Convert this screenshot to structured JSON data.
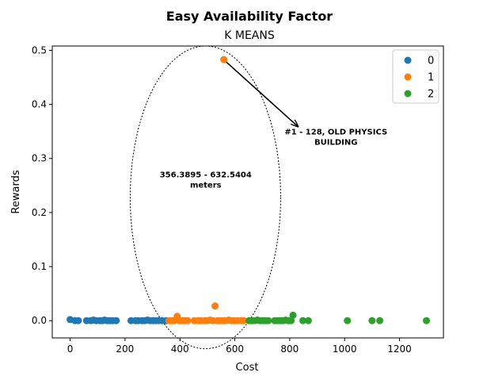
{
  "chart_data": {
    "type": "scatter",
    "title": "Easy Availability Factor",
    "subtitle": "K MEANS",
    "xlabel": "Cost",
    "ylabel": "Rewards",
    "xlim": [
      -65,
      1360
    ],
    "ylim": [
      -0.032,
      0.508
    ],
    "xticks": [
      0,
      200,
      400,
      600,
      800,
      1000,
      1200
    ],
    "yticks": [
      0.0,
      0.1,
      0.2,
      0.3,
      0.4,
      0.5
    ],
    "ytick_labels": [
      "0.0",
      "0.1",
      "0.2",
      "0.3",
      "0.4",
      "0.5"
    ],
    "grid": false,
    "legend_position": "top-right",
    "series": [
      {
        "name": "0",
        "color": "#1f77b4",
        "points": [
          [
            0,
            0.002
          ],
          [
            18,
            0.0
          ],
          [
            30,
            0.0
          ],
          [
            60,
            0.0
          ],
          [
            75,
            0.0
          ],
          [
            85,
            0.001
          ],
          [
            95,
            0.0
          ],
          [
            108,
            0.0
          ],
          [
            118,
            0.0
          ],
          [
            126,
            0.001
          ],
          [
            135,
            0.0
          ],
          [
            145,
            0.0
          ],
          [
            155,
            0.0
          ],
          [
            168,
            0.0
          ],
          [
            222,
            0.0
          ],
          [
            238,
            0.0
          ],
          [
            248,
            0.0
          ],
          [
            262,
            0.0
          ],
          [
            272,
            0.0
          ],
          [
            282,
            0.001
          ],
          [
            292,
            0.0
          ],
          [
            302,
            0.0
          ],
          [
            312,
            0.0
          ],
          [
            322,
            0.0
          ],
          [
            335,
            0.0
          ],
          [
            350,
            0.0
          ]
        ]
      },
      {
        "name": "1",
        "color": "#ff7f0e",
        "points": [
          [
            360,
            0.0
          ],
          [
            370,
            0.0
          ],
          [
            380,
            0.0
          ],
          [
            390,
            0.008
          ],
          [
            398,
            0.0
          ],
          [
            408,
            0.0
          ],
          [
            418,
            0.0
          ],
          [
            428,
            0.0
          ],
          [
            452,
            0.0
          ],
          [
            466,
            0.0
          ],
          [
            476,
            0.0
          ],
          [
            490,
            0.0
          ],
          [
            500,
            0.0
          ],
          [
            510,
            0.001
          ],
          [
            520,
            0.0
          ],
          [
            528,
            0.027
          ],
          [
            536,
            0.0
          ],
          [
            546,
            0.0
          ],
          [
            556,
            0.0
          ],
          [
            560,
            0.483
          ],
          [
            566,
            0.0
          ],
          [
            578,
            0.001
          ],
          [
            588,
            0.0
          ],
          [
            598,
            0.0
          ],
          [
            610,
            0.0
          ],
          [
            622,
            0.0
          ],
          [
            632,
            0.0
          ]
        ]
      },
      {
        "name": "2",
        "color": "#2ca02c",
        "points": [
          [
            652,
            0.0
          ],
          [
            662,
            0.0
          ],
          [
            672,
            0.0
          ],
          [
            682,
            0.001
          ],
          [
            692,
            0.0
          ],
          [
            702,
            0.0
          ],
          [
            712,
            0.0
          ],
          [
            722,
            0.0
          ],
          [
            745,
            0.0
          ],
          [
            755,
            0.0
          ],
          [
            765,
            0.0
          ],
          [
            775,
            0.0
          ],
          [
            785,
            0.001
          ],
          [
            795,
            0.0
          ],
          [
            805,
            0.0
          ],
          [
            812,
            0.01
          ],
          [
            848,
            0.0
          ],
          [
            868,
            0.0
          ],
          [
            1010,
            0.0
          ],
          [
            1100,
            0.0
          ],
          [
            1128,
            0.0
          ],
          [
            1298,
            0.0
          ]
        ]
      }
    ],
    "annotations": [
      {
        "text_lines": [
          "356.3895 - 632.5404",
          "meters"
        ],
        "anchor_x": 494,
        "anchor_y": 0.268
      },
      {
        "text_lines": [
          "#1 - 128, OLD PHYSICS",
          "BUILDING"
        ],
        "arrow_from": [
          560,
          0.483
        ],
        "arrow_to": [
          830,
          0.359
        ]
      }
    ]
  }
}
